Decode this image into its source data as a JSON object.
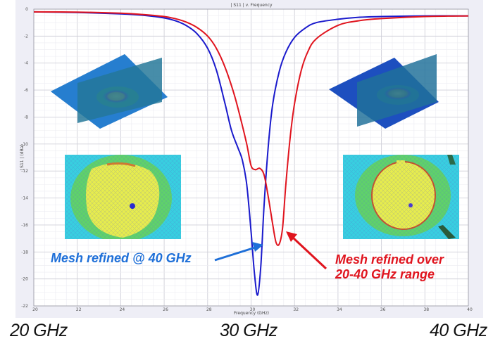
{
  "chart_data": {
    "type": "line",
    "title": "| S11 | v. Frequency",
    "xlabel": "Frequency (GHz)",
    "ylabel": "| S11 | (dBa)",
    "xlim": [
      20,
      40
    ],
    "ylim": [
      -22,
      0
    ],
    "xticks": [
      20,
      22,
      24,
      26,
      28,
      30,
      32,
      34,
      36,
      38,
      40
    ],
    "yticks": [
      0,
      -2,
      -4,
      -6,
      -8,
      -10,
      -12,
      -14,
      -16,
      -18,
      -20,
      -22
    ],
    "grid": true,
    "series": [
      {
        "name": "Mesh refined @ 40 GHz",
        "color": "#1a1acc",
        "x": [
          20,
          22,
          24,
          25,
          26,
          26.5,
          27,
          27.5,
          28,
          28.4,
          28.8,
          29.1,
          29.4,
          29.6,
          29.8,
          30.0,
          30.15,
          30.3,
          30.45,
          30.6,
          30.8,
          31.0,
          31.3,
          31.6,
          32.0,
          32.5,
          33,
          34,
          35,
          36,
          38,
          40
        ],
        "y": [
          -0.2,
          -0.25,
          -0.35,
          -0.45,
          -0.65,
          -0.85,
          -1.2,
          -1.8,
          -2.9,
          -4.5,
          -7.0,
          -9.0,
          -10.3,
          -11.2,
          -13.0,
          -16.5,
          -19.5,
          -21.2,
          -19.0,
          -14.5,
          -10.0,
          -7.0,
          -4.6,
          -3.2,
          -2.1,
          -1.4,
          -1.0,
          -0.75,
          -0.6,
          -0.55,
          -0.5,
          -0.5
        ]
      },
      {
        "name": "Mesh refined over 20-40 GHz range",
        "color": "#e0141e",
        "x": [
          20,
          22,
          24,
          25,
          26,
          26.5,
          27,
          27.5,
          28,
          28.4,
          28.8,
          29.2,
          29.5,
          29.8,
          30.0,
          30.2,
          30.4,
          30.6,
          30.8,
          31.0,
          31.15,
          31.3,
          31.45,
          31.6,
          31.8,
          32.0,
          32.3,
          32.6,
          33,
          34,
          35,
          36,
          38,
          40
        ],
        "y": [
          -0.2,
          -0.22,
          -0.3,
          -0.4,
          -0.55,
          -0.7,
          -0.95,
          -1.35,
          -2.0,
          -2.9,
          -4.3,
          -6.2,
          -8.0,
          -10.0,
          -11.6,
          -11.9,
          -11.8,
          -12.3,
          -14.0,
          -16.0,
          -17.3,
          -17.4,
          -16.2,
          -13.0,
          -9.5,
          -7.0,
          -4.6,
          -3.2,
          -2.2,
          -1.2,
          -0.85,
          -0.7,
          -0.55,
          -0.5
        ]
      }
    ],
    "annotations": [
      {
        "text": "Mesh refined @ 40 GHz",
        "color": "#1e6fd8",
        "points_to": "blue minimum near 30.3 GHz"
      },
      {
        "text": "Mesh refined over 20-40 GHz range",
        "color": "#e0141e",
        "points_to": "red minimum near 31.3 GHz"
      }
    ]
  },
  "labels": {
    "title": "| S11 | v. Frequency",
    "xlabel": "Frequency (GHz)",
    "ylabel": "| S11 | (dBa)",
    "annot_blue": "Mesh refined @ 40 GHz",
    "annot_red_line1": "Mesh refined over",
    "annot_red_line2": "20-40 GHz range",
    "bottom_left": "20 GHz",
    "bottom_mid": "30 GHz",
    "bottom_right": "40 GHz"
  },
  "insets": {
    "top_left": "3D mesh field view (coarse)",
    "top_right": "3D mesh field view (refined)",
    "mid_left": "Top-down mesh field map (refined @ 40 GHz)",
    "mid_right": "Top-down mesh field map (refined over 20-40 GHz)"
  },
  "colors": {
    "blue_series": "#1a1acc",
    "red_series": "#e0141e",
    "blue_annotation": "#1e6fd8",
    "plot_bg": "#ffffff",
    "frame_bg": "#eeeef6",
    "grid": "#dcdce4"
  }
}
